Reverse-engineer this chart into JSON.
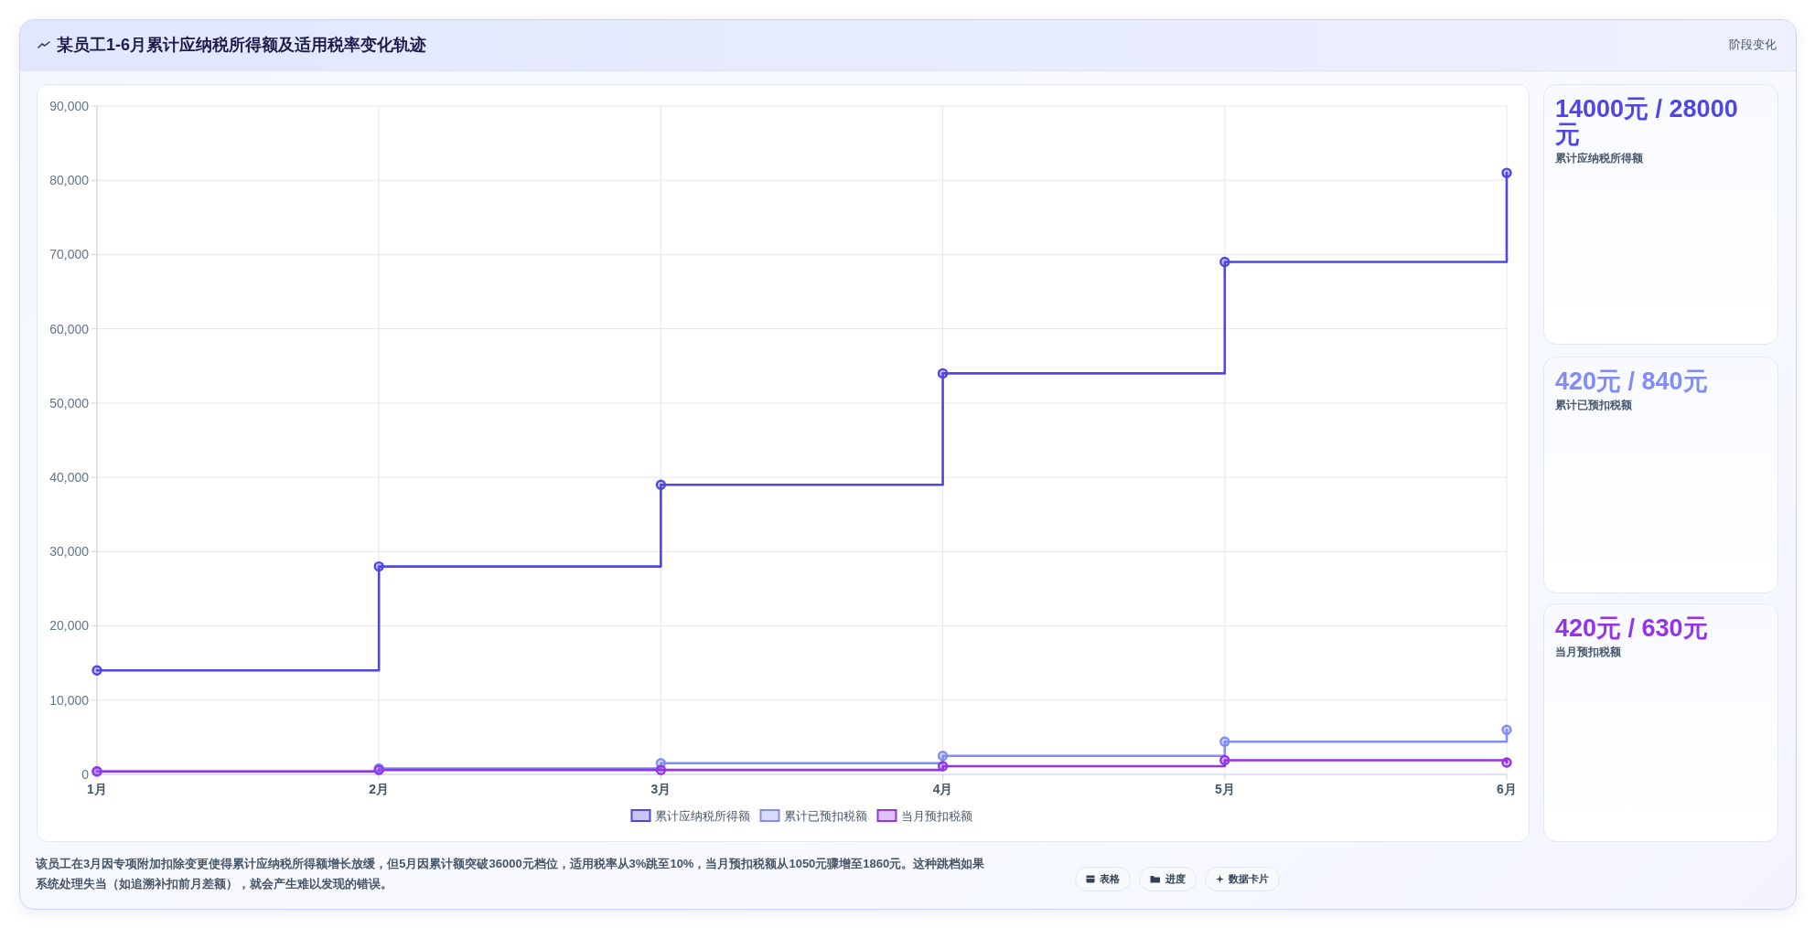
{
  "chart_data": [
    {
      "type": "step",
      "title": "某员工1-6月累计应纳税所得额及适用税率变化轨迹",
      "categories": [
        "1月",
        "2月",
        "3月",
        "4月",
        "5月",
        "6月"
      ],
      "series": [
        {
          "name": "累计应纳税所得额",
          "color": "#4f46e5",
          "values": [
            14000,
            28000,
            39000,
            54000,
            69000,
            81000
          ]
        },
        {
          "name": "累计已预扣税额",
          "color": "#818cf8",
          "values": [
            400,
            800,
            1500,
            2500,
            4400,
            6000
          ]
        },
        {
          "name": "当月预扣税额",
          "color": "#9333ea",
          "values": [
            400,
            600,
            600,
            1100,
            1900,
            1600
          ]
        }
      ],
      "ylim": [
        0,
        90000
      ],
      "yticks": [
        0,
        {
          "value": 10000,
          "label": "10,000"
        },
        {
          "value": 20000,
          "label": "20,000"
        },
        {
          "value": 30000,
          "label": "30,000"
        },
        {
          "value": 40000,
          "label": "40,000"
        },
        {
          "value": 50000,
          "label": "50,000"
        },
        {
          "value": 60000,
          "label": "60,000"
        },
        {
          "value": 70000,
          "label": "70,000"
        },
        {
          "value": 80000,
          "label": "80,000"
        },
        {
          "value": 90000,
          "label": "90,000"
        }
      ],
      "grid": true,
      "legend": "bottom",
      "marker": "circle",
      "line_style": "solid",
      "annotations": [
        "阶段变化",
        "该员工在3月因专项附加扣除变更使得累计应纳税所得额增长放缓，但5月因累计额突破36000元档位，适用税率从3%跳至10%，当月预扣税额从1050元骤增至1860元。这种跳档如果系统处理失当（如追溯补扣前月差额），就会产生难以发现的错误。",
        "表格",
        "进度",
        "数据卡片"
      ]
    },
    {
      "type": "other",
      "title": "14000元 / 28000元",
      "subtitle": "累计应纳税所得额"
    },
    {
      "type": "other",
      "title": "420元 / 840元",
      "subtitle": "累计已预扣税额"
    },
    {
      "type": "other",
      "title": "420元 / 630元",
      "subtitle": "当月预扣税额"
    }
  ]
}
